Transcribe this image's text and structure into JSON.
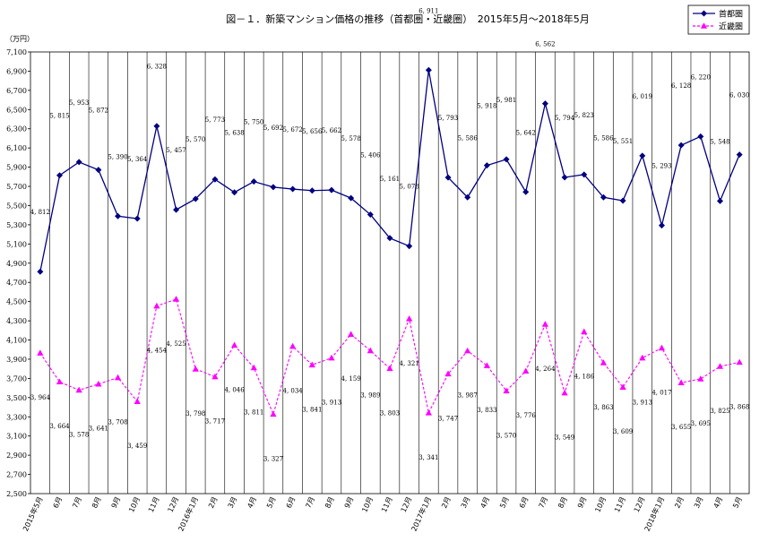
{
  "chart_data": {
    "type": "line",
    "title": "図－１．新築マンション価格の推移（首都圏・近畿圏）　2015年5月～2018年5月",
    "ylabel": "（万円）",
    "xlabel": "",
    "ylim": [
      2500,
      7100
    ],
    "ytick_step": 200,
    "grid": "vertical",
    "legend_position": "top-right",
    "categories": [
      "2015年5月",
      "6月",
      "7月",
      "8月",
      "9月",
      "10月",
      "11月",
      "12月",
      "2016年1月",
      "2月",
      "3月",
      "4月",
      "5月",
      "6月",
      "7月",
      "8月",
      "9月",
      "10月",
      "11月",
      "12月",
      "2017年1月",
      "2月",
      "3月",
      "4月",
      "5月",
      "6月",
      "7月",
      "8月",
      "9月",
      "10月",
      "11月",
      "12月",
      "2018年1月",
      "2月",
      "3月",
      "4月",
      "5月"
    ],
    "series": [
      {
        "name": "首都圏",
        "color": "#000080",
        "marker": "diamond",
        "line_style": "solid",
        "label_position": "above",
        "values": [
          4812,
          5815,
          5953,
          5872,
          5390,
          5364,
          6328,
          5457,
          5570,
          5773,
          5638,
          5750,
          5692,
          5672,
          5656,
          5662,
          5578,
          5406,
          5161,
          5078,
          6911,
          5793,
          5586,
          5918,
          5981,
          5642,
          6562,
          5794,
          5823,
          5586,
          5551,
          6019,
          5293,
          6128,
          6220,
          5548,
          6030
        ]
      },
      {
        "name": "近畿圏",
        "color": "#ff00ff",
        "marker": "triangle",
        "line_style": "dashed",
        "label_position": "below",
        "values": [
          3964,
          3664,
          3578,
          3641,
          3708,
          3459,
          4454,
          4525,
          3798,
          3717,
          4046,
          3811,
          3327,
          4034,
          3841,
          3913,
          4159,
          3989,
          3803,
          4321,
          3341,
          3747,
          3987,
          3833,
          3570,
          3776,
          4264,
          3549,
          4186,
          3863,
          3609,
          3913,
          4017,
          3655,
          3695,
          3825,
          3868
        ]
      }
    ]
  }
}
